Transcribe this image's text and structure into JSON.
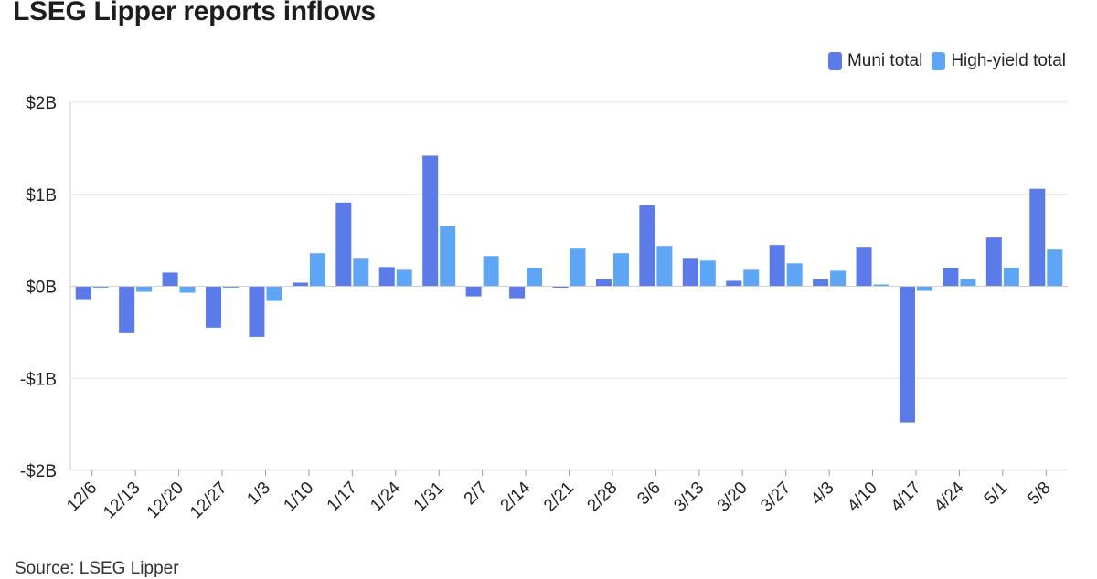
{
  "title": "LSEG Lipper reports inflows",
  "source": "Source: LSEG Lipper",
  "legend": [
    {
      "label": "Muni total",
      "color": "#5b7be8"
    },
    {
      "label": "High-yield total",
      "color": "#5ea6f5"
    }
  ],
  "chart_data": {
    "type": "bar",
    "title": "LSEG Lipper reports inflows",
    "xlabel": "",
    "ylabel": "",
    "ylim": [
      -2,
      2
    ],
    "y_ticks": [
      {
        "value": 2,
        "label": "$2B"
      },
      {
        "value": 1,
        "label": "$1B"
      },
      {
        "value": 0,
        "label": "$0B"
      },
      {
        "value": -1,
        "label": "-$1B"
      },
      {
        "value": -2,
        "label": "-$2B"
      }
    ],
    "units": "billions of dollars",
    "grid": true,
    "legend_position": "top-right",
    "categories": [
      "12/6",
      "12/13",
      "12/20",
      "12/27",
      "1/3",
      "1/10",
      "1/17",
      "1/24",
      "1/31",
      "2/7",
      "2/14",
      "2/21",
      "2/28",
      "3/6",
      "3/13",
      "3/20",
      "3/27",
      "4/3",
      "4/10",
      "4/17",
      "4/24",
      "5/1",
      "5/8"
    ],
    "series": [
      {
        "name": "Muni total",
        "color": "#5b7be8",
        "values": [
          -0.14,
          -0.51,
          0.15,
          -0.45,
          -0.55,
          0.04,
          0.91,
          0.21,
          1.42,
          -0.11,
          -0.13,
          -0.01,
          0.08,
          0.88,
          0.3,
          0.06,
          0.45,
          0.08,
          0.42,
          -1.48,
          0.2,
          0.53,
          1.06
        ]
      },
      {
        "name": "High-yield total",
        "color": "#5ea6f5",
        "values": [
          0.0,
          -0.06,
          -0.07,
          0.0,
          -0.16,
          0.36,
          0.3,
          0.18,
          0.65,
          0.33,
          0.2,
          0.41,
          0.36,
          0.44,
          0.28,
          0.18,
          0.25,
          0.17,
          0.02,
          -0.05,
          0.08,
          0.2,
          0.4
        ]
      }
    ]
  }
}
